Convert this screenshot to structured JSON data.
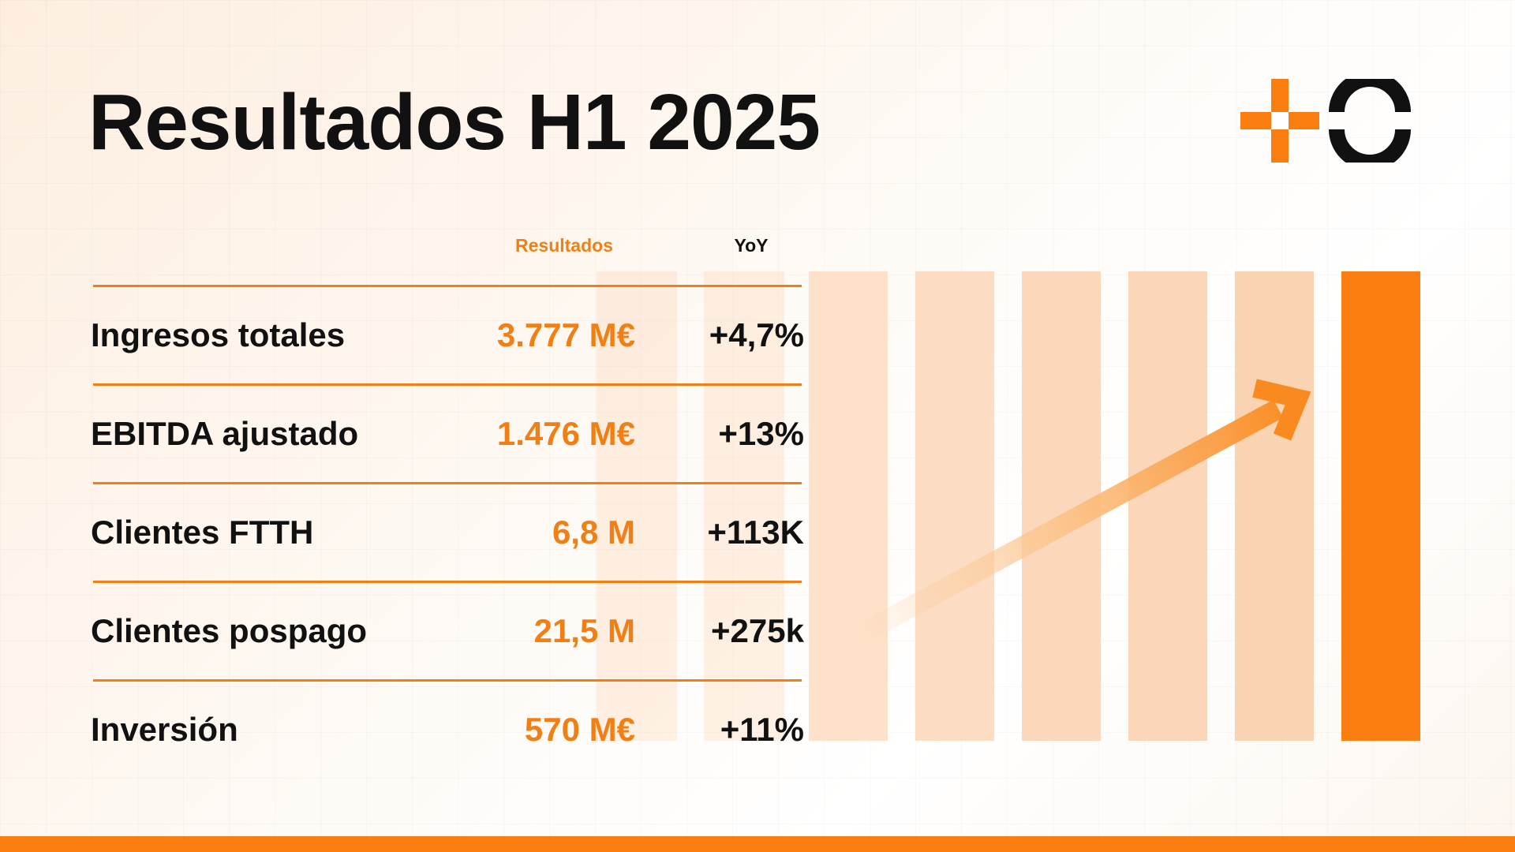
{
  "title": "Resultados H1 2025",
  "colors": {
    "accent": "#f97d10",
    "text": "#111111"
  },
  "logo": {
    "icon": "plus-circle-logo-icon"
  },
  "table": {
    "headers": {
      "results": "Resultados",
      "yoy": "YoY"
    },
    "rows": [
      {
        "label": "Ingresos totales",
        "value": "3.777 M€",
        "yoy": "+4,7%"
      },
      {
        "label": "EBITDA ajustado",
        "value": "1.476 M€",
        "yoy": "+13%"
      },
      {
        "label": "Clientes FTTH",
        "value": "6,8 M",
        "yoy": "+113K"
      },
      {
        "label": "Clientes pospago",
        "value": "21,5 M",
        "yoy": "+275k"
      },
      {
        "label": "Inversión",
        "value": "570 M€",
        "yoy": "+11%"
      }
    ]
  },
  "graphic": {
    "bar_count": 6,
    "icon": "growth-arrow-icon"
  }
}
